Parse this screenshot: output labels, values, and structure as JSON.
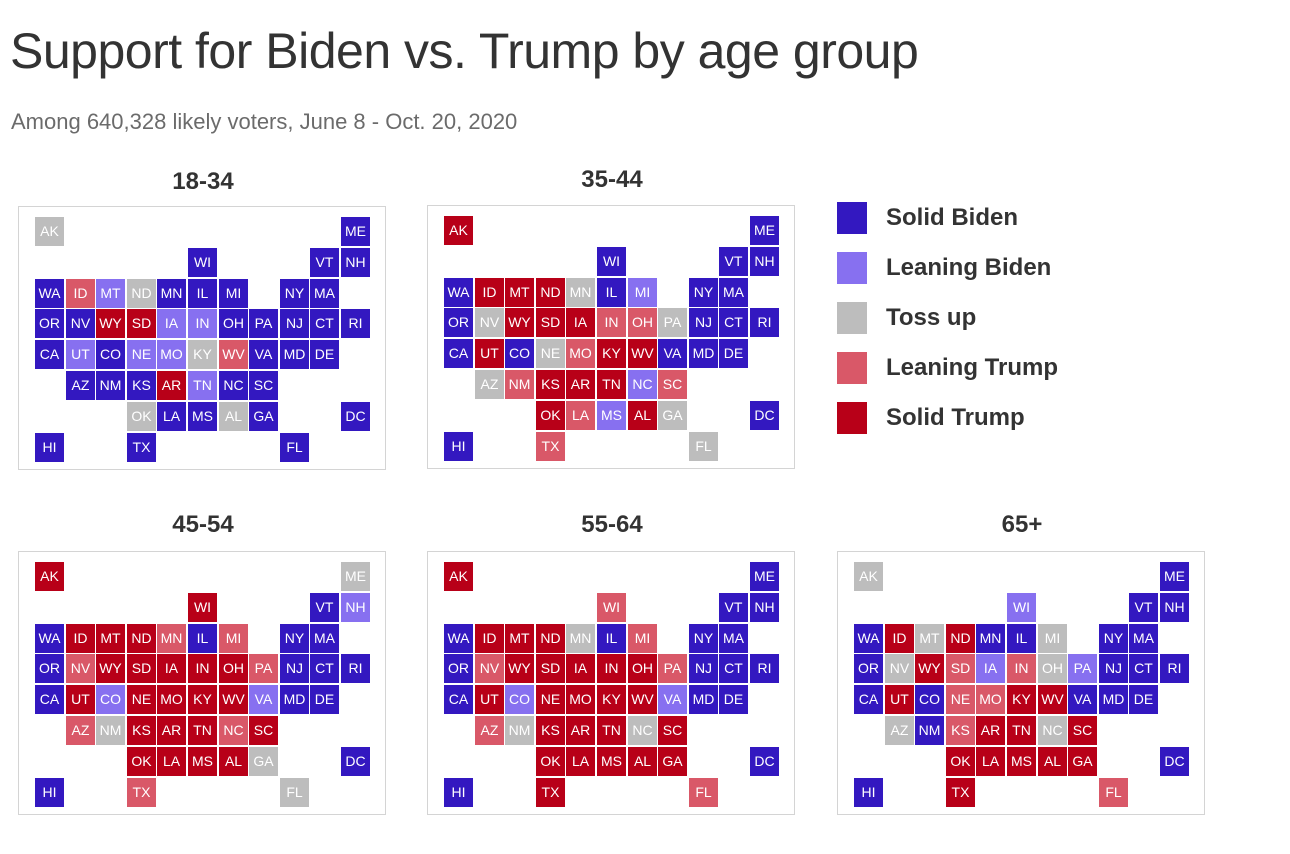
{
  "title": "Support for Biden vs. Trump by age group",
  "subtitle": "Among 640,328 likely voters, June 8 - Oct. 20, 2020",
  "colors": {
    "solid_biden": "#3318c0",
    "leaning_biden": "#8770f0",
    "toss_up": "#bdbdbd",
    "leaning_trump": "#d95868",
    "solid_trump": "#b80018"
  },
  "legend": [
    {
      "category": "solid_biden",
      "label": "Solid Biden"
    },
    {
      "category": "leaning_biden",
      "label": "Leaning Biden"
    },
    {
      "category": "toss_up",
      "label": "Toss up"
    },
    {
      "category": "leaning_trump",
      "label": "Leaning Trump"
    },
    {
      "category": "solid_trump",
      "label": "Solid Trump"
    }
  ],
  "state_grid": {
    "AK": [
      0,
      0
    ],
    "ME": [
      10,
      0
    ],
    "WI": [
      5,
      1
    ],
    "VT": [
      9,
      1
    ],
    "NH": [
      10,
      1
    ],
    "WA": [
      0,
      2
    ],
    "ID": [
      1,
      2
    ],
    "MT": [
      2,
      2
    ],
    "ND": [
      3,
      2
    ],
    "MN": [
      4,
      2
    ],
    "IL": [
      5,
      2
    ],
    "MI": [
      6,
      2
    ],
    "NY": [
      8,
      2
    ],
    "MA": [
      9,
      2
    ],
    "OR": [
      0,
      3
    ],
    "NV": [
      1,
      3
    ],
    "WY": [
      2,
      3
    ],
    "SD": [
      3,
      3
    ],
    "IA": [
      4,
      3
    ],
    "IN": [
      5,
      3
    ],
    "OH": [
      6,
      3
    ],
    "PA": [
      7,
      3
    ],
    "NJ": [
      8,
      3
    ],
    "CT": [
      9,
      3
    ],
    "RI": [
      10,
      3
    ],
    "CA": [
      0,
      4
    ],
    "UT": [
      1,
      4
    ],
    "CO": [
      2,
      4
    ],
    "NE": [
      3,
      4
    ],
    "MO": [
      4,
      4
    ],
    "KY": [
      5,
      4
    ],
    "WV": [
      6,
      4
    ],
    "VA": [
      7,
      4
    ],
    "MD": [
      8,
      4
    ],
    "DE": [
      9,
      4
    ],
    "AZ": [
      1,
      5
    ],
    "NM": [
      2,
      5
    ],
    "KS": [
      3,
      5
    ],
    "AR": [
      4,
      5
    ],
    "TN": [
      5,
      5
    ],
    "NC": [
      6,
      5
    ],
    "SC": [
      7,
      5
    ],
    "OK": [
      3,
      6
    ],
    "LA": [
      4,
      6
    ],
    "MS": [
      5,
      6
    ],
    "AL": [
      6,
      6
    ],
    "GA": [
      7,
      6
    ],
    "DC": [
      10,
      6
    ],
    "HI": [
      0,
      7
    ],
    "TX": [
      3,
      7
    ],
    "FL": [
      8,
      7
    ]
  },
  "panels": [
    {
      "label": "18-34",
      "states": {
        "AK": "toss_up",
        "ME": "solid_biden",
        "WI": "solid_biden",
        "VT": "solid_biden",
        "NH": "solid_biden",
        "WA": "solid_biden",
        "ID": "leaning_trump",
        "MT": "leaning_biden",
        "ND": "toss_up",
        "MN": "solid_biden",
        "IL": "solid_biden",
        "MI": "solid_biden",
        "NY": "solid_biden",
        "MA": "solid_biden",
        "OR": "solid_biden",
        "NV": "solid_biden",
        "WY": "solid_trump",
        "SD": "solid_trump",
        "IA": "leaning_biden",
        "IN": "leaning_biden",
        "OH": "solid_biden",
        "PA": "solid_biden",
        "NJ": "solid_biden",
        "CT": "solid_biden",
        "RI": "solid_biden",
        "CA": "solid_biden",
        "UT": "leaning_biden",
        "CO": "solid_biden",
        "NE": "leaning_biden",
        "MO": "leaning_biden",
        "KY": "toss_up",
        "WV": "leaning_trump",
        "VA": "solid_biden",
        "MD": "solid_biden",
        "DE": "solid_biden",
        "AZ": "solid_biden",
        "NM": "solid_biden",
        "KS": "solid_biden",
        "AR": "solid_trump",
        "TN": "leaning_biden",
        "NC": "solid_biden",
        "SC": "solid_biden",
        "OK": "toss_up",
        "LA": "solid_biden",
        "MS": "solid_biden",
        "AL": "toss_up",
        "GA": "solid_biden",
        "DC": "solid_biden",
        "HI": "solid_biden",
        "TX": "solid_biden",
        "FL": "solid_biden"
      }
    },
    {
      "label": "35-44",
      "states": {
        "AK": "solid_trump",
        "ME": "solid_biden",
        "WI": "solid_biden",
        "VT": "solid_biden",
        "NH": "solid_biden",
        "WA": "solid_biden",
        "ID": "solid_trump",
        "MT": "solid_trump",
        "ND": "solid_trump",
        "MN": "toss_up",
        "IL": "solid_biden",
        "MI": "leaning_biden",
        "NY": "solid_biden",
        "MA": "solid_biden",
        "OR": "solid_biden",
        "NV": "toss_up",
        "WY": "solid_trump",
        "SD": "solid_trump",
        "IA": "solid_trump",
        "IN": "leaning_trump",
        "OH": "leaning_trump",
        "PA": "toss_up",
        "NJ": "solid_biden",
        "CT": "solid_biden",
        "RI": "solid_biden",
        "CA": "solid_biden",
        "UT": "solid_trump",
        "CO": "solid_biden",
        "NE": "toss_up",
        "MO": "leaning_trump",
        "KY": "solid_trump",
        "WV": "solid_trump",
        "VA": "solid_biden",
        "MD": "solid_biden",
        "DE": "solid_biden",
        "AZ": "toss_up",
        "NM": "leaning_trump",
        "KS": "solid_trump",
        "AR": "solid_trump",
        "TN": "solid_trump",
        "NC": "leaning_biden",
        "SC": "leaning_trump",
        "OK": "solid_trump",
        "LA": "leaning_trump",
        "MS": "leaning_biden",
        "AL": "solid_trump",
        "GA": "toss_up",
        "DC": "solid_biden",
        "HI": "solid_biden",
        "TX": "leaning_trump",
        "FL": "toss_up"
      }
    },
    {
      "label": "45-54",
      "states": {
        "AK": "solid_trump",
        "ME": "toss_up",
        "WI": "solid_trump",
        "VT": "solid_biden",
        "NH": "leaning_biden",
        "WA": "solid_biden",
        "ID": "solid_trump",
        "MT": "solid_trump",
        "ND": "solid_trump",
        "MN": "leaning_trump",
        "IL": "solid_biden",
        "MI": "leaning_trump",
        "NY": "solid_biden",
        "MA": "solid_biden",
        "OR": "solid_biden",
        "NV": "leaning_trump",
        "WY": "solid_trump",
        "SD": "solid_trump",
        "IA": "solid_trump",
        "IN": "solid_trump",
        "OH": "solid_trump",
        "PA": "leaning_trump",
        "NJ": "solid_biden",
        "CT": "solid_biden",
        "RI": "solid_biden",
        "CA": "solid_biden",
        "UT": "solid_trump",
        "CO": "leaning_biden",
        "NE": "solid_trump",
        "MO": "solid_trump",
        "KY": "solid_trump",
        "WV": "solid_trump",
        "VA": "leaning_biden",
        "MD": "solid_biden",
        "DE": "solid_biden",
        "AZ": "leaning_trump",
        "NM": "toss_up",
        "KS": "solid_trump",
        "AR": "solid_trump",
        "TN": "solid_trump",
        "NC": "leaning_trump",
        "SC": "solid_trump",
        "OK": "solid_trump",
        "LA": "solid_trump",
        "MS": "solid_trump",
        "AL": "solid_trump",
        "GA": "toss_up",
        "DC": "solid_biden",
        "HI": "solid_biden",
        "TX": "leaning_trump",
        "FL": "toss_up"
      }
    },
    {
      "label": "55-64",
      "states": {
        "AK": "solid_trump",
        "ME": "solid_biden",
        "WI": "leaning_trump",
        "VT": "solid_biden",
        "NH": "solid_biden",
        "WA": "solid_biden",
        "ID": "solid_trump",
        "MT": "solid_trump",
        "ND": "solid_trump",
        "MN": "toss_up",
        "IL": "solid_biden",
        "MI": "leaning_trump",
        "NY": "solid_biden",
        "MA": "solid_biden",
        "OR": "solid_biden",
        "NV": "leaning_trump",
        "WY": "solid_trump",
        "SD": "solid_trump",
        "IA": "solid_trump",
        "IN": "solid_trump",
        "OH": "solid_trump",
        "PA": "leaning_trump",
        "NJ": "solid_biden",
        "CT": "solid_biden",
        "RI": "solid_biden",
        "CA": "solid_biden",
        "UT": "solid_trump",
        "CO": "leaning_biden",
        "NE": "solid_trump",
        "MO": "solid_trump",
        "KY": "solid_trump",
        "WV": "solid_trump",
        "VA": "leaning_biden",
        "MD": "solid_biden",
        "DE": "solid_biden",
        "AZ": "leaning_trump",
        "NM": "toss_up",
        "KS": "solid_trump",
        "AR": "solid_trump",
        "TN": "solid_trump",
        "NC": "toss_up",
        "SC": "solid_trump",
        "OK": "solid_trump",
        "LA": "solid_trump",
        "MS": "solid_trump",
        "AL": "solid_trump",
        "GA": "solid_trump",
        "DC": "solid_biden",
        "HI": "solid_biden",
        "TX": "solid_trump",
        "FL": "leaning_trump"
      }
    },
    {
      "label": "65+",
      "states": {
        "AK": "toss_up",
        "ME": "solid_biden",
        "WI": "leaning_biden",
        "VT": "solid_biden",
        "NH": "solid_biden",
        "WA": "solid_biden",
        "ID": "solid_trump",
        "MT": "toss_up",
        "ND": "solid_trump",
        "MN": "solid_biden",
        "IL": "solid_biden",
        "MI": "toss_up",
        "NY": "solid_biden",
        "MA": "solid_biden",
        "OR": "solid_biden",
        "NV": "toss_up",
        "WY": "solid_trump",
        "SD": "leaning_trump",
        "IA": "leaning_biden",
        "IN": "leaning_trump",
        "OH": "toss_up",
        "PA": "leaning_biden",
        "NJ": "solid_biden",
        "CT": "solid_biden",
        "RI": "solid_biden",
        "CA": "solid_biden",
        "UT": "solid_trump",
        "CO": "solid_biden",
        "NE": "leaning_trump",
        "MO": "leaning_trump",
        "KY": "solid_trump",
        "WV": "solid_trump",
        "VA": "solid_biden",
        "MD": "solid_biden",
        "DE": "solid_biden",
        "AZ": "toss_up",
        "NM": "solid_biden",
        "KS": "leaning_trump",
        "AR": "solid_trump",
        "TN": "solid_trump",
        "NC": "toss_up",
        "SC": "solid_trump",
        "OK": "solid_trump",
        "LA": "solid_trump",
        "MS": "solid_trump",
        "AL": "solid_trump",
        "GA": "solid_trump",
        "DC": "solid_biden",
        "HI": "solid_biden",
        "TX": "solid_trump",
        "FL": "leaning_trump"
      }
    }
  ]
}
